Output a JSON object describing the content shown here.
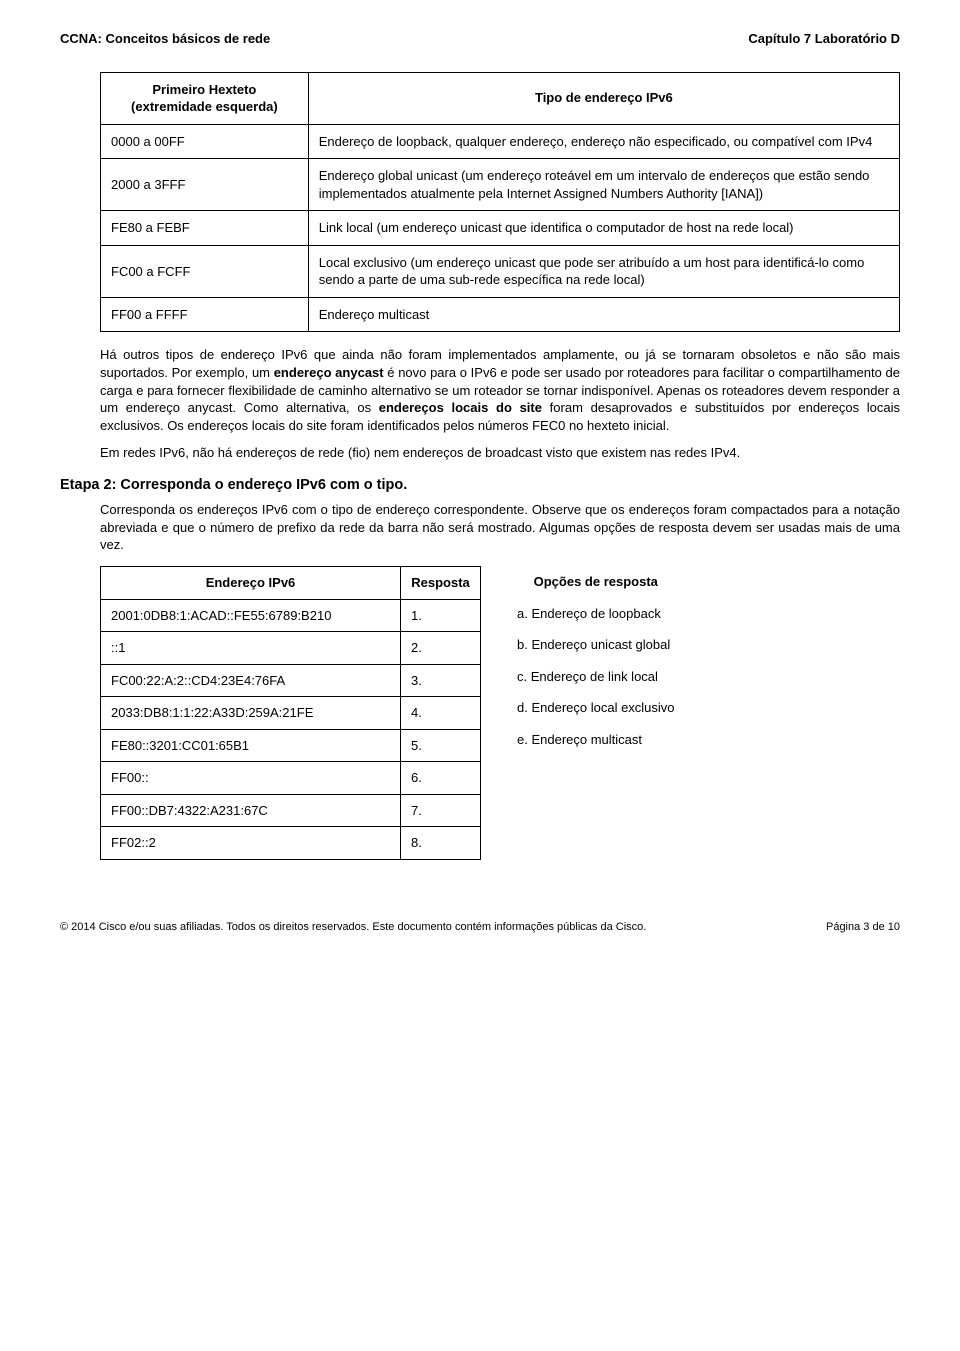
{
  "header": {
    "left": "CCNA: Conceitos básicos de rede",
    "right": "Capítulo 7 Laboratório D"
  },
  "addrTypeTable": {
    "headers": {
      "hexteto": "Primeiro Hexteto (extremidade esquerda)",
      "tipo": "Tipo de endereço IPv6"
    },
    "rows": [
      {
        "range": "0000 a 00FF",
        "desc": "Endereço de loopback, qualquer endereço, endereço não especificado, ou compatível com IPv4"
      },
      {
        "range": "2000 a 3FFF",
        "desc": "Endereço global unicast (um endereço roteável em um intervalo de endereços que estão sendo implementados atualmente pela Internet Assigned Numbers Authority [IANA])"
      },
      {
        "range": "FE80 a FEBF",
        "desc": "Link local (um endereço unicast que identifica o computador de host na rede local)"
      },
      {
        "range": "FC00 a FCFF",
        "desc": "Local exclusivo (um endereço unicast que pode ser atribuído a um host para identificá-lo como sendo a parte de uma sub-rede específica na rede local)"
      },
      {
        "range": "FF00 a FFFF",
        "desc": "Endereço multicast"
      }
    ]
  },
  "paragraphs": {
    "p1a": "Há outros tipos de endereço IPv6 que ainda não foram implementados amplamente, ou já se tornaram obsoletos e não são mais suportados. Por exemplo, um ",
    "p1b": "endereço anycast",
    "p1c": " é novo para o IPv6 e pode ser usado por roteadores para facilitar o compartilhamento de carga e para fornecer flexibilidade de caminho alternativo se um roteador se tornar indisponível. Apenas os roteadores devem responder a um endereço anycast. Como alternativa, os ",
    "p1d": "endereços locais do site",
    "p1e": " foram desaprovados e substituídos por endereços locais exclusivos. Os endereços locais do site foram identificados pelos números FEC0 no hexteto inicial.",
    "p2": "Em redes IPv6, não há endereços de rede (fio) nem endereços de broadcast visto que existem nas redes IPv4."
  },
  "step2": {
    "title": "Etapa 2: Corresponda o endereço IPv6 com o tipo.",
    "desc": "Corresponda os endereços IPv6 com o tipo de endereço correspondente. Observe que os endereços foram compactados para a notação abreviada e que o número de prefixo da rede da barra não será mostrado. Algumas opções de resposta devem ser usadas mais de uma vez."
  },
  "matchTable": {
    "headers": {
      "addr": "Endereço IPv6",
      "resp": "Resposta",
      "opts": "Opções de resposta"
    },
    "rows": [
      {
        "addr": "2001:0DB8:1:ACAD::FE55:6789:B210",
        "resp": "1.",
        "opt": "a. Endereço de loopback"
      },
      {
        "addr": "::1",
        "resp": "2.",
        "opt": "b. Endereço unicast global"
      },
      {
        "addr": "FC00:22:A:2::CD4:23E4:76FA",
        "resp": "3.",
        "opt": "c. Endereço de link local"
      },
      {
        "addr": "2033:DB8:1:1:22:A33D:259A:21FE",
        "resp": "4.",
        "opt": "d. Endereço local exclusivo"
      },
      {
        "addr": "FE80::3201:CC01:65B1",
        "resp": "5.",
        "opt": "e. Endereço multicast"
      },
      {
        "addr": "FF00::",
        "resp": "6.",
        "opt": ""
      },
      {
        "addr": "FF00::DB7:4322:A231:67C",
        "resp": "7.",
        "opt": ""
      },
      {
        "addr": "FF02::2",
        "resp": "8.",
        "opt": ""
      }
    ]
  },
  "footer": {
    "left": "© 2014 Cisco e/ou suas afiliadas. Todos os direitos reservados. Este documento contém informações públicas da Cisco.",
    "right": "Página 3 de 10"
  }
}
